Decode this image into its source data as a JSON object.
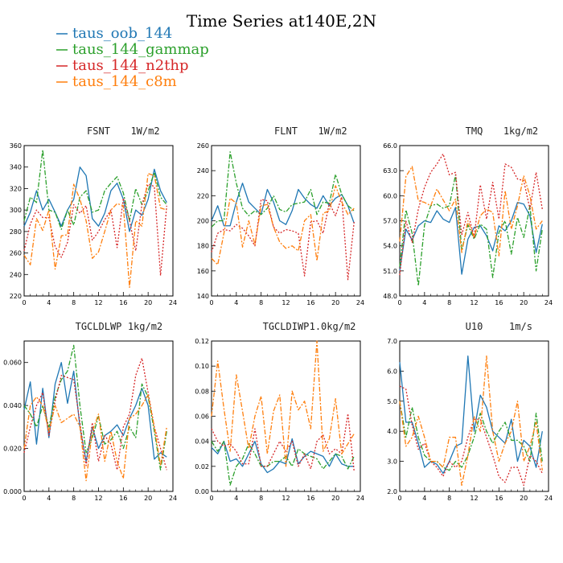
{
  "figure_title": "Time Series at140E,2N",
  "chart_data": [
    {
      "type": "line",
      "title": "FSNT",
      "units": "1W/m2",
      "xlim": [
        0,
        24
      ],
      "xticks": [
        0,
        4,
        8,
        12,
        16,
        20,
        24
      ],
      "ylim": [
        220,
        360
      ],
      "yticks": [
        "220",
        "240",
        "260",
        "280",
        "300",
        "320",
        "340",
        "360"
      ],
      "x": [
        0,
        1,
        2,
        3,
        4,
        5,
        6,
        7,
        8,
        9,
        10,
        11,
        12,
        13,
        14,
        15,
        16,
        17,
        18,
        19,
        20,
        21,
        22,
        23
      ],
      "series": [
        {
          "name": "taus_oob_144",
          "color": "#1f77b4",
          "dash": "",
          "values": [
            285,
            298,
            318,
            300,
            310,
            298,
            285,
            300,
            310,
            340,
            332,
            292,
            285,
            297,
            318,
            325,
            310,
            280,
            300,
            295,
            310,
            338,
            318,
            307
          ]
        },
        {
          "name": "taus_144_gammap",
          "color": "#2ca02c",
          "dash": "6,2,2,2",
          "values": [
            290,
            312,
            307,
            356,
            300,
            298,
            282,
            300,
            286,
            312,
            318,
            298,
            300,
            318,
            325,
            331,
            316,
            290,
            320,
            305,
            318,
            335,
            312,
            305
          ]
        },
        {
          "name": "taus_144_n2thp",
          "color": "#d62728",
          "dash": "2,2",
          "values": [
            262,
            287,
            300,
            293,
            293,
            266,
            256,
            270,
            305,
            297,
            304,
            272,
            280,
            291,
            300,
            265,
            311,
            290,
            262,
            305,
            324,
            322,
            239,
            304
          ]
        },
        {
          "name": "taus_144_c8m",
          "color": "#ff7f0e",
          "dash": "6,2,2,2",
          "values": [
            258,
            249,
            292,
            281,
            300,
            245,
            276,
            277,
            324,
            310,
            290,
            255,
            261,
            280,
            300,
            306,
            304,
            228,
            290,
            285,
            334,
            332,
            302,
            300
          ]
        }
      ]
    },
    {
      "type": "line",
      "title": "FLNT",
      "units": "1W/m2",
      "xlim": [
        0,
        24
      ],
      "xticks": [
        0,
        4,
        8,
        12,
        16,
        20,
        24
      ],
      "ylim": [
        140,
        260
      ],
      "yticks": [
        "140",
        "160",
        "180",
        "200",
        "220",
        "240",
        "260"
      ],
      "x": [
        0,
        1,
        2,
        3,
        4,
        5,
        6,
        7,
        8,
        9,
        10,
        11,
        12,
        13,
        14,
        15,
        16,
        17,
        18,
        19,
        20,
        21,
        22,
        23
      ],
      "series": [
        {
          "name": "taus_oob_144",
          "color": "#1f77b4",
          "dash": "",
          "values": [
            200,
            212,
            196,
            196,
            215,
            230,
            215,
            210,
            205,
            225,
            215,
            200,
            197,
            208,
            225,
            218,
            213,
            210,
            220,
            212,
            218,
            221,
            212,
            198
          ]
        },
        {
          "name": "taus_144_gammap",
          "color": "#2ca02c",
          "dash": "6,2,2,2",
          "values": [
            195,
            200,
            200,
            255,
            230,
            210,
            204,
            208,
            205,
            210,
            220,
            209,
            207,
            213,
            214,
            215,
            225,
            205,
            215,
            214,
            237,
            221,
            212,
            208
          ]
        },
        {
          "name": "taus_144_n2thp",
          "color": "#d62728",
          "dash": "2,2",
          "values": [
            175,
            190,
            193,
            192,
            197,
            194,
            188,
            180,
            217,
            216,
            195,
            190,
            193,
            192,
            190,
            156,
            199,
            200,
            190,
            214,
            204,
            219,
            153,
            199
          ]
        },
        {
          "name": "taus_144_c8m",
          "color": "#ff7f0e",
          "dash": "6,2,2,2",
          "values": [
            170,
            165,
            190,
            218,
            214,
            179,
            200,
            181,
            212,
            213,
            195,
            183,
            178,
            180,
            176,
            200,
            205,
            168,
            206,
            208,
            228,
            215,
            205,
            210
          ]
        }
      ]
    },
    {
      "type": "line",
      "title": "TMQ",
      "units": "1kg/m2",
      "xlim": [
        0,
        24
      ],
      "xticks": [
        0,
        4,
        8,
        12,
        16,
        20,
        24
      ],
      "ylim": [
        48,
        66
      ],
      "yticks": [
        "48.0",
        "51.0",
        "54.0",
        "57.0",
        "60.0",
        "63.0",
        "66.0"
      ],
      "x": [
        0,
        1,
        2,
        3,
        4,
        5,
        6,
        7,
        8,
        9,
        10,
        11,
        12,
        13,
        14,
        15,
        16,
        17,
        18,
        19,
        20,
        21,
        22,
        23
      ],
      "series": [
        {
          "name": "taus_oob_144",
          "color": "#1f77b4",
          "dash": "",
          "values": [
            51.0,
            56.0,
            54.7,
            56.4,
            57.0,
            56.8,
            58.2,
            57.2,
            56.8,
            58.6,
            50.6,
            54.8,
            56.2,
            56.4,
            55.2,
            53.4,
            56.4,
            55.8,
            57.0,
            59.2,
            59.0,
            57.6,
            53.2,
            56.6
          ]
        },
        {
          "name": "taus_144_gammap",
          "color": "#2ca02c",
          "dash": "6,2,2,2",
          "values": [
            51.5,
            58.3,
            55.5,
            49.2,
            56.5,
            58.8,
            59.0,
            58.5,
            58.8,
            62.5,
            53.5,
            56.5,
            54.8,
            56.6,
            56.0,
            50.2,
            55.6,
            57.0,
            53.0,
            57.4,
            55.0,
            58.8,
            51.0,
            56.0
          ]
        },
        {
          "name": "taus_144_n2thp",
          "color": "#d62728",
          "dash": "2,2",
          "values": [
            50.5,
            57.0,
            54.4,
            58.4,
            61.0,
            62.8,
            63.8,
            65.0,
            62.5,
            62.8,
            55.3,
            58.0,
            55.0,
            61.3,
            57.2,
            61.6,
            57.2,
            63.8,
            63.4,
            62.0,
            61.8,
            58.4,
            62.8,
            58.4
          ]
        },
        {
          "name": "taus_144_c8m",
          "color": "#ff7f0e",
          "dash": "6,2,2,2",
          "values": [
            54.5,
            62.3,
            63.5,
            59.4,
            59.2,
            58.8,
            60.8,
            59.5,
            58.2,
            59.6,
            53.2,
            57.0,
            55.0,
            57.6,
            58.4,
            58.0,
            52.8,
            60.6,
            56.0,
            58.8,
            62.4,
            60.0,
            56.0,
            57.0
          ]
        }
      ]
    },
    {
      "type": "line",
      "title": "TGCLDLWP",
      "units": "1kg/m2",
      "xlim": [
        0,
        24
      ],
      "xticks": [
        0,
        4,
        8,
        12,
        16,
        20,
        24
      ],
      "ylim": [
        0,
        0.07
      ],
      "yticks": [
        "0.000",
        "0.020",
        "0.040",
        "0.060"
      ],
      "x": [
        0,
        1,
        2,
        3,
        4,
        5,
        6,
        7,
        8,
        9,
        10,
        11,
        12,
        13,
        14,
        15,
        16,
        17,
        18,
        19,
        20,
        21,
        22,
        23
      ],
      "series": [
        {
          "name": "taus_oob_144",
          "color": "#1f77b4",
          "dash": "",
          "values": [
            0.038,
            0.051,
            0.022,
            0.048,
            0.025,
            0.05,
            0.06,
            0.041,
            0.056,
            0.03,
            0.014,
            0.03,
            0.02,
            0.026,
            0.028,
            0.031,
            0.026,
            0.034,
            0.04,
            0.048,
            0.04,
            0.015,
            0.018,
            0.016
          ]
        },
        {
          "name": "taus_144_gammap",
          "color": "#2ca02c",
          "dash": "6,2,2,2",
          "values": [
            0.04,
            0.036,
            0.03,
            0.04,
            0.03,
            0.044,
            0.052,
            0.056,
            0.068,
            0.04,
            0.018,
            0.025,
            0.035,
            0.022,
            0.024,
            0.028,
            0.02,
            0.03,
            0.025,
            0.05,
            0.044,
            0.028,
            0.01,
            0.028
          ]
        },
        {
          "name": "taus_144_n2thp",
          "color": "#d62728",
          "dash": "2,2",
          "values": [
            0.018,
            0.03,
            0.04,
            0.046,
            0.026,
            0.042,
            0.054,
            0.053,
            0.052,
            0.032,
            0.012,
            0.032,
            0.014,
            0.026,
            0.022,
            0.01,
            0.03,
            0.036,
            0.054,
            0.062,
            0.046,
            0.03,
            0.02,
            0.01
          ]
        },
        {
          "name": "taus_144_c8m",
          "color": "#ff7f0e",
          "dash": "6,2,2,2",
          "values": [
            0.02,
            0.04,
            0.044,
            0.04,
            0.028,
            0.04,
            0.032,
            0.034,
            0.036,
            0.03,
            0.005,
            0.028,
            0.036,
            0.014,
            0.028,
            0.014,
            0.006,
            0.034,
            0.036,
            0.04,
            0.045,
            0.03,
            0.012,
            0.03
          ]
        }
      ]
    },
    {
      "type": "line",
      "title": "TGCLDIWP",
      "units": "1.0kg/m2",
      "xlim": [
        0,
        24
      ],
      "xticks": [
        0,
        4,
        8,
        12,
        16,
        20,
        24
      ],
      "ylim": [
        0,
        0.12
      ],
      "yticks": [
        "0.00",
        "0.02",
        "0.04",
        "0.06",
        "0.08",
        "0.10",
        "0.12"
      ],
      "x": [
        0,
        1,
        2,
        3,
        4,
        5,
        6,
        7,
        8,
        9,
        10,
        11,
        12,
        13,
        14,
        15,
        16,
        17,
        18,
        19,
        20,
        21,
        22,
        23
      ],
      "series": [
        {
          "name": "taus_oob_144",
          "color": "#1f77b4",
          "dash": "",
          "values": [
            0.035,
            0.03,
            0.04,
            0.024,
            0.026,
            0.02,
            0.03,
            0.04,
            0.022,
            0.015,
            0.018,
            0.024,
            0.022,
            0.042,
            0.022,
            0.028,
            0.032,
            0.03,
            0.028,
            0.02,
            0.03,
            0.022,
            0.02,
            0.02
          ]
        },
        {
          "name": "taus_144_gammap",
          "color": "#2ca02c",
          "dash": "6,2,2,2",
          "values": [
            0.04,
            0.032,
            0.04,
            0.005,
            0.02,
            0.026,
            0.038,
            0.03,
            0.02,
            0.02,
            0.024,
            0.024,
            0.028,
            0.02,
            0.034,
            0.03,
            0.028,
            0.026,
            0.018,
            0.024,
            0.03,
            0.028,
            0.018,
            0.028
          ]
        },
        {
          "name": "taus_144_n2thp",
          "color": "#d62728",
          "dash": "2,2",
          "values": [
            0.05,
            0.04,
            0.036,
            0.038,
            0.032,
            0.022,
            0.022,
            0.05,
            0.02,
            0.02,
            0.03,
            0.04,
            0.032,
            0.04,
            0.02,
            0.03,
            0.018,
            0.04,
            0.045,
            0.03,
            0.034,
            0.03,
            0.062,
            0.016
          ]
        },
        {
          "name": "taus_144_c8m",
          "color": "#ff7f0e",
          "dash": "6,2,2,2",
          "values": [
            0.06,
            0.104,
            0.066,
            0.032,
            0.093,
            0.064,
            0.034,
            0.06,
            0.076,
            0.03,
            0.064,
            0.077,
            0.02,
            0.08,
            0.065,
            0.072,
            0.05,
            0.12,
            0.032,
            0.042,
            0.074,
            0.03,
            0.038,
            0.046
          ]
        }
      ]
    },
    {
      "type": "line",
      "title": "U10",
      "units": "1m/s",
      "xlim": [
        0,
        24
      ],
      "xticks": [
        0,
        4,
        8,
        12,
        16,
        20,
        24
      ],
      "ylim": [
        2,
        7
      ],
      "yticks": [
        "2.0",
        "3.0",
        "4.0",
        "5.0",
        "6.0",
        "7.0"
      ],
      "x": [
        0,
        1,
        2,
        3,
        4,
        5,
        6,
        7,
        8,
        9,
        10,
        11,
        12,
        13,
        14,
        15,
        16,
        17,
        18,
        19,
        20,
        21,
        22,
        23
      ],
      "series": [
        {
          "name": "taus_oob_144",
          "color": "#1f77b4",
          "dash": "",
          "values": [
            6.3,
            4.3,
            4.3,
            3.6,
            2.8,
            3.0,
            2.9,
            2.6,
            3.0,
            3.5,
            3.6,
            6.5,
            4.0,
            5.2,
            4.8,
            4.0,
            3.8,
            3.6,
            4.4,
            3.0,
            3.7,
            3.5,
            2.8,
            4.0
          ]
        },
        {
          "name": "taus_144_gammap",
          "color": "#2ca02c",
          "dash": "6,2,2,2",
          "values": [
            5.0,
            3.8,
            4.8,
            3.8,
            3.2,
            3.0,
            3.0,
            2.8,
            2.7,
            3.0,
            2.8,
            3.2,
            3.8,
            4.6,
            4.0,
            3.6,
            4.0,
            4.3,
            3.7,
            3.7,
            3.5,
            3.0,
            4.6,
            3.0
          ]
        },
        {
          "name": "taus_144_n2thp",
          "color": "#d62728",
          "dash": "2,2",
          "values": [
            5.5,
            5.4,
            4.2,
            3.4,
            3.6,
            3.0,
            2.8,
            2.5,
            3.0,
            2.8,
            3.0,
            3.8,
            4.4,
            4.4,
            3.8,
            3.2,
            2.5,
            2.3,
            2.8,
            2.8,
            2.2,
            3.2,
            3.0,
            2.6
          ]
        },
        {
          "name": "taus_144_c8m",
          "color": "#ff7f0e",
          "dash": "6,2,2,2",
          "values": [
            5.0,
            3.5,
            3.8,
            4.5,
            3.8,
            3.0,
            3.0,
            2.8,
            3.8,
            3.8,
            2.2,
            3.2,
            4.5,
            4.0,
            6.5,
            4.0,
            3.0,
            3.6,
            4.0,
            5.0,
            3.0,
            3.5,
            4.3,
            2.7
          ]
        }
      ]
    }
  ]
}
